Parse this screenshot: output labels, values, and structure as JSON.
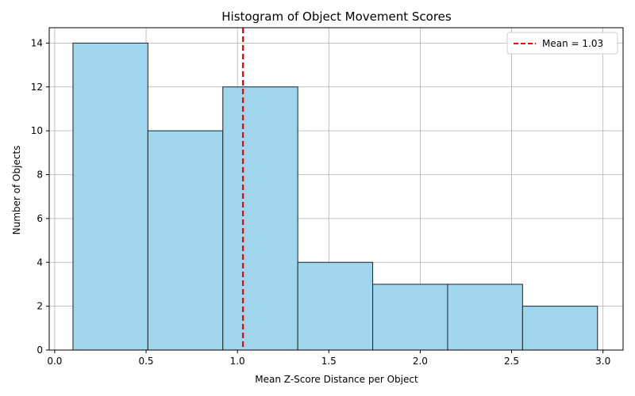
{
  "chart_data": {
    "type": "histogram",
    "title": "Histogram of Object Movement Scores",
    "xlabel": "Mean Z-Score Distance per Object",
    "ylabel": "Number of Objects",
    "xlim": [
      -0.03,
      3.11
    ],
    "ylim": [
      0,
      14.7
    ],
    "xticks": [
      0.0,
      0.5,
      1.0,
      1.5,
      2.0,
      2.5,
      3.0
    ],
    "xtick_labels": [
      "0.0",
      "0.5",
      "1.0",
      "1.5",
      "2.0",
      "2.5",
      "3.0"
    ],
    "yticks": [
      0,
      2,
      4,
      6,
      8,
      10,
      12,
      14
    ],
    "ytick_labels": [
      "0",
      "2",
      "4",
      "6",
      "8",
      "10",
      "12",
      "14"
    ],
    "grid": true,
    "bins": [
      {
        "x0": 0.1,
        "x1": 0.51,
        "count": 14
      },
      {
        "x0": 0.51,
        "x1": 0.92,
        "count": 10
      },
      {
        "x0": 0.92,
        "x1": 1.33,
        "count": 12
      },
      {
        "x0": 1.33,
        "x1": 1.74,
        "count": 4
      },
      {
        "x0": 1.74,
        "x1": 2.15,
        "count": 3
      },
      {
        "x0": 2.15,
        "x1": 2.56,
        "count": 3
      },
      {
        "x0": 2.56,
        "x1": 2.97,
        "count": 2
      }
    ],
    "mean_line": {
      "value": 1.03,
      "label": "Mean = 1.03",
      "color": "#ff0000",
      "style": "dashed"
    },
    "bar_color": "#9fd6ee",
    "bar_edge_color": "#222222",
    "legend": {
      "placement": "top-right"
    }
  }
}
